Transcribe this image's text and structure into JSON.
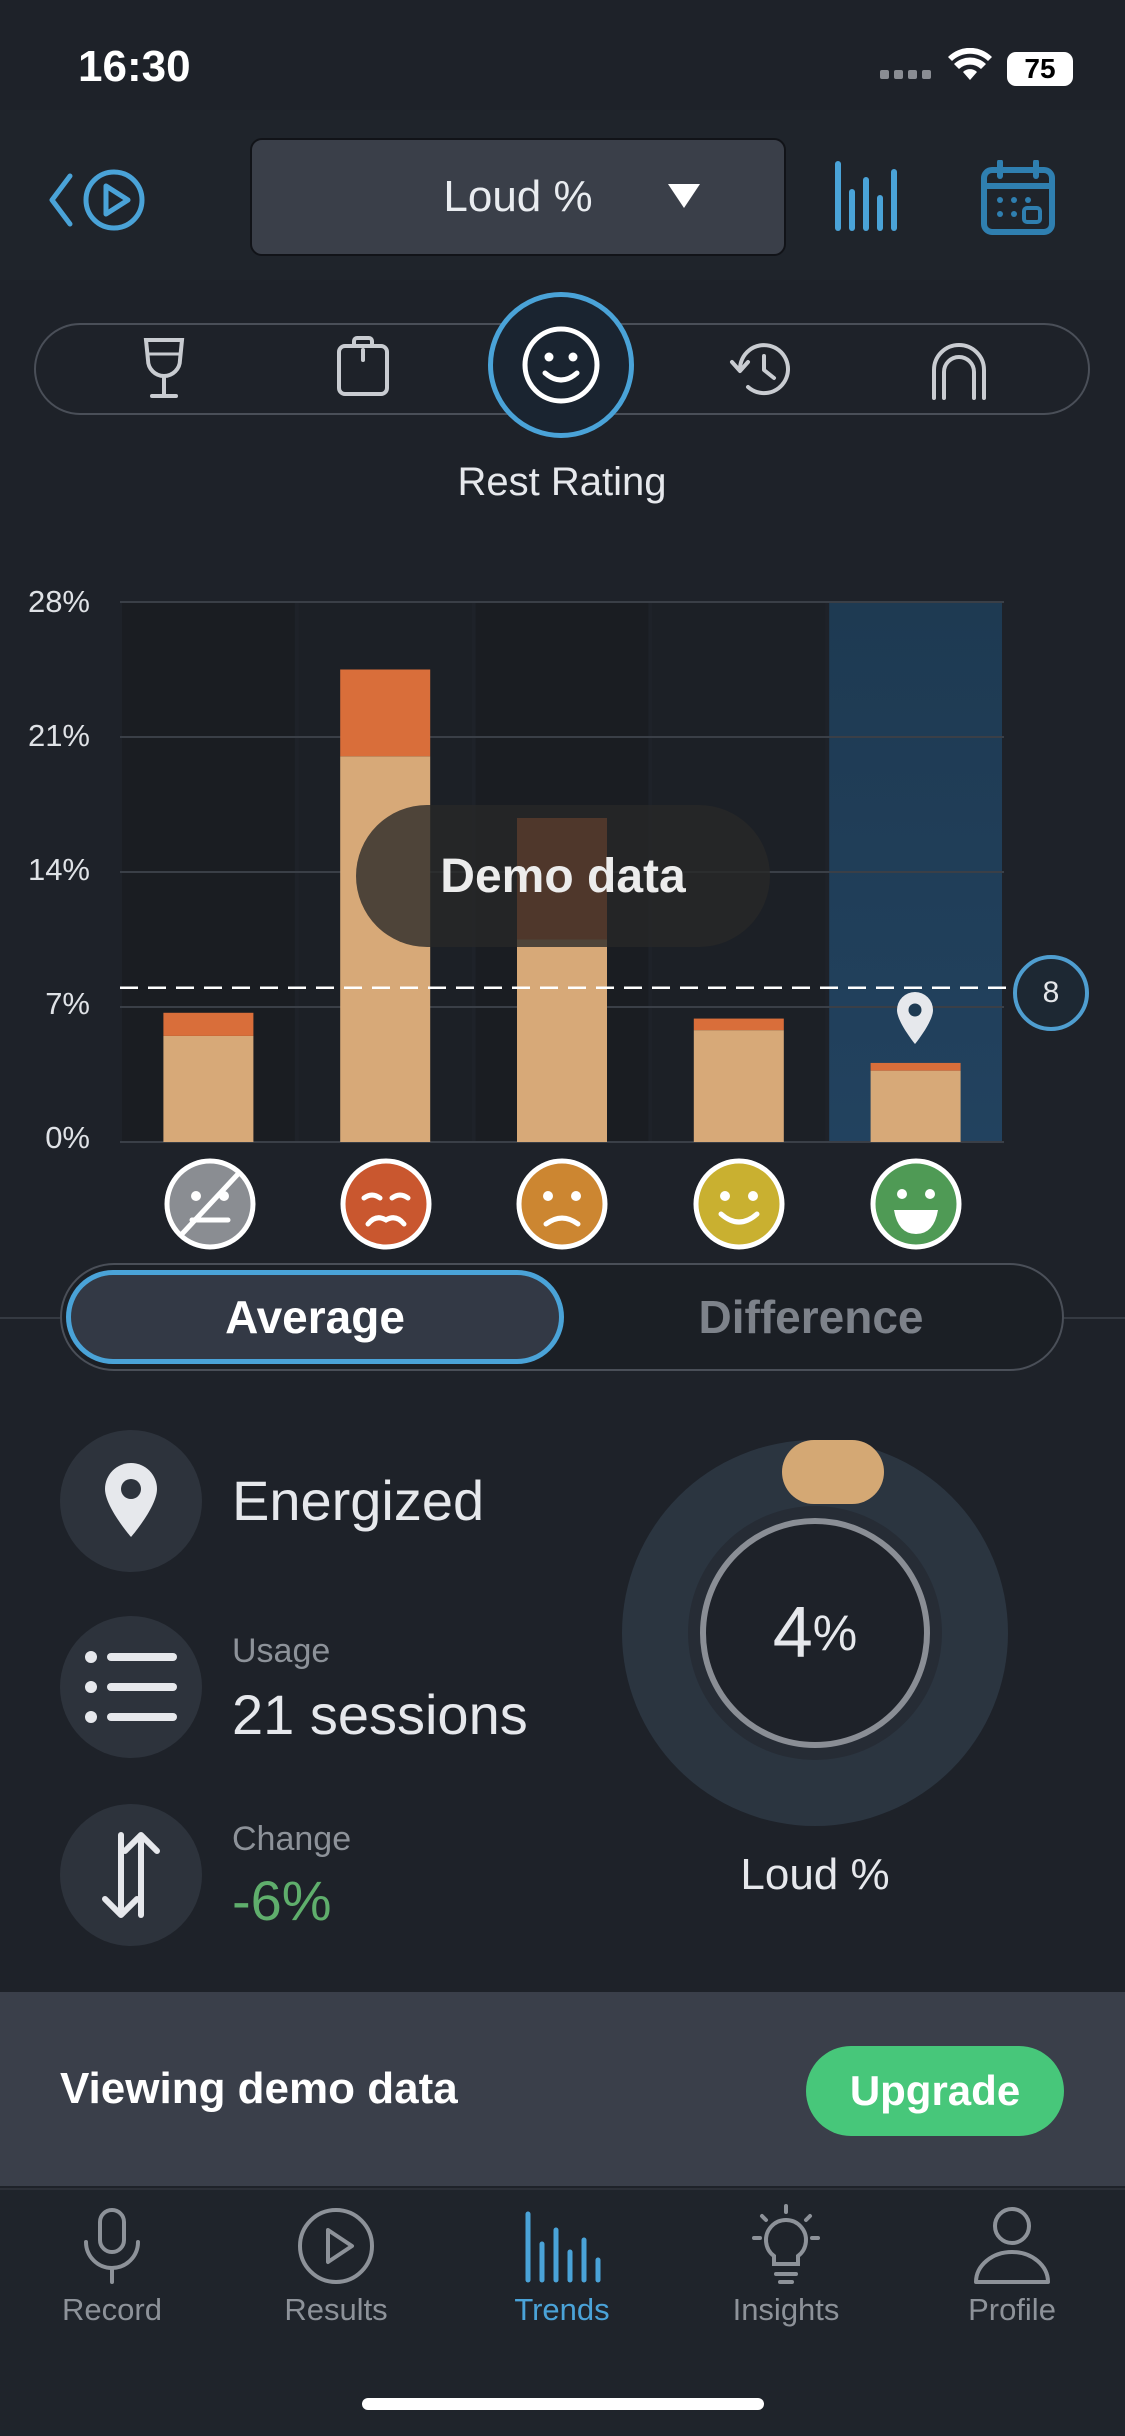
{
  "status_bar": {
    "time": "16:30",
    "battery": "75"
  },
  "header": {
    "metric": "Loud %"
  },
  "category_strip": {
    "items": [
      "wine-glass-icon",
      "clipboard-icon",
      "smiley-icon",
      "history-icon",
      "arch-icon"
    ],
    "active_label": "Rest Rating"
  },
  "chart_data": {
    "type": "bar",
    "stacked": true,
    "categories": [
      "no-rating",
      "exhausted",
      "tired",
      "energized",
      "refreshed"
    ],
    "series": [
      {
        "values": [
          5.5,
          20,
          10.5,
          5.8,
          3.7
        ],
        "color": "#d7a978"
      },
      {
        "values": [
          1.2,
          4.5,
          6.3,
          0.6,
          0.4
        ],
        "color": "#d96e3a"
      }
    ],
    "ylim": [
      0,
      28
    ],
    "yticks": [
      "28%",
      "21%",
      "14%",
      "7%",
      "0%"
    ],
    "reference_line": 8.0,
    "reference_label": "8",
    "highlighted_category": "refreshed",
    "overlay_label": "Demo data",
    "grid": true
  },
  "segmented": {
    "average": "Average",
    "difference": "Difference"
  },
  "stats": {
    "selected": "Energized",
    "usage_label": "Usage",
    "usage_value": "21 sessions",
    "change_label": "Change",
    "change_value": "-6%"
  },
  "gauge": {
    "value": "4",
    "unit": "%",
    "label": "Loud %",
    "level": 0.04
  },
  "banner": {
    "text": "Viewing demo data",
    "button": "Upgrade"
  },
  "tabs": [
    {
      "label": "Record",
      "icon": "microphone-icon"
    },
    {
      "label": "Results",
      "icon": "play-circle-icon"
    },
    {
      "label": "Trends",
      "icon": "bar-chart-icon",
      "active": true
    },
    {
      "label": "Insights",
      "icon": "lightbulb-icon"
    },
    {
      "label": "Profile",
      "icon": "person-icon"
    }
  ],
  "colors": {
    "accent": "#4aa3d8",
    "bar_base": "#d7a978",
    "bar_top": "#d96e3a",
    "upgrade": "#47c77a",
    "negative_change": "#5fae6c"
  }
}
